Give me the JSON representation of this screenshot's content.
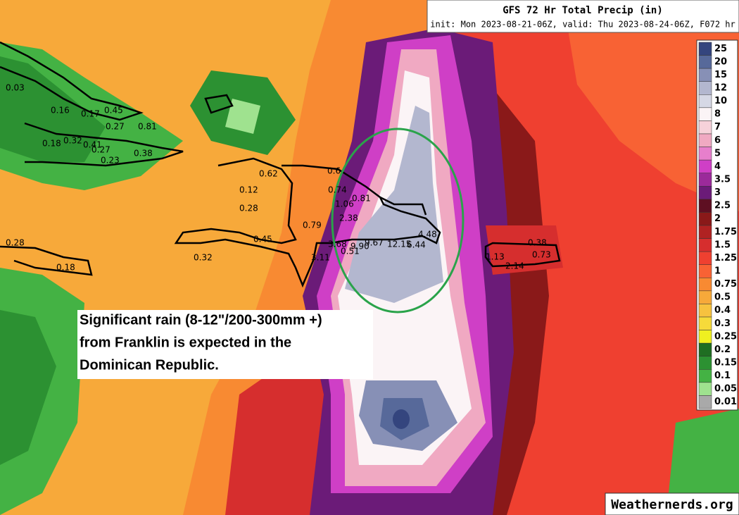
{
  "header": {
    "title": "GFS 72 Hr Total Precip (in)",
    "subtitle": "init: Mon 2023-08-21-06Z, valid: Thu 2023-08-24-06Z, F072 hr"
  },
  "legend": {
    "items": [
      {
        "label": "25",
        "color": "#34457e"
      },
      {
        "label": "20",
        "color": "#57699a"
      },
      {
        "label": "15",
        "color": "#8790b6"
      },
      {
        "label": "12",
        "color": "#b3b7cf"
      },
      {
        "label": "10",
        "color": "#d6d8e5"
      },
      {
        "label": "8",
        "color": "#fbf4f6"
      },
      {
        "label": "7",
        "color": "#f6d2da"
      },
      {
        "label": "6",
        "color": "#f0a9c2"
      },
      {
        "label": "5",
        "color": "#e77fcc"
      },
      {
        "label": "4",
        "color": "#cf3fc6"
      },
      {
        "label": "3.5",
        "color": "#9b2a9a"
      },
      {
        "label": "3",
        "color": "#6b1b78"
      },
      {
        "label": "2.5",
        "color": "#5e0f22"
      },
      {
        "label": "2",
        "color": "#8a1919"
      },
      {
        "label": "1.75",
        "color": "#b02222"
      },
      {
        "label": "1.5",
        "color": "#d62e2e"
      },
      {
        "label": "1.25",
        "color": "#ef4030"
      },
      {
        "label": "1",
        "color": "#f86234"
      },
      {
        "label": "0.75",
        "color": "#f88a32"
      },
      {
        "label": "0.5",
        "color": "#f7a93a"
      },
      {
        "label": "0.4",
        "color": "#f7c23f"
      },
      {
        "label": "0.3",
        "color": "#f6da3a"
      },
      {
        "label": "0.25",
        "color": "#eff020"
      },
      {
        "label": "0.2",
        "color": "#1f6e22"
      },
      {
        "label": "0.15",
        "color": "#2c9132"
      },
      {
        "label": "0.1",
        "color": "#44b244"
      },
      {
        "label": "0.05",
        "color": "#9fe28f"
      },
      {
        "label": "0.01",
        "color": "#a9a9a9"
      }
    ]
  },
  "map_labels": [
    "0.03",
    "0.16",
    "0.17",
    "0.45",
    "0.27",
    "0.81",
    "0.18",
    "0.32",
    "0.41",
    "0.27",
    "0.23",
    "0.38",
    "0.62",
    "0.12",
    "0.28",
    "0.6",
    "0.74",
    "1.06",
    "0.81",
    "2.38",
    "0.79",
    "0.45",
    "0.28",
    "0.18",
    "0.32",
    "3.68",
    "9.90",
    "9.67",
    "12.15",
    "6.44",
    "4.48",
    "0.51",
    "3.11",
    "0.38",
    "0.73",
    "1.13",
    "2.14"
  ],
  "annotation": {
    "lines": [
      "Significant rain (8-12\"/200-300mm +)",
      "from Franklin is expected in the",
      "Dominican Republic."
    ]
  },
  "watermark": "Weathernerds.org"
}
